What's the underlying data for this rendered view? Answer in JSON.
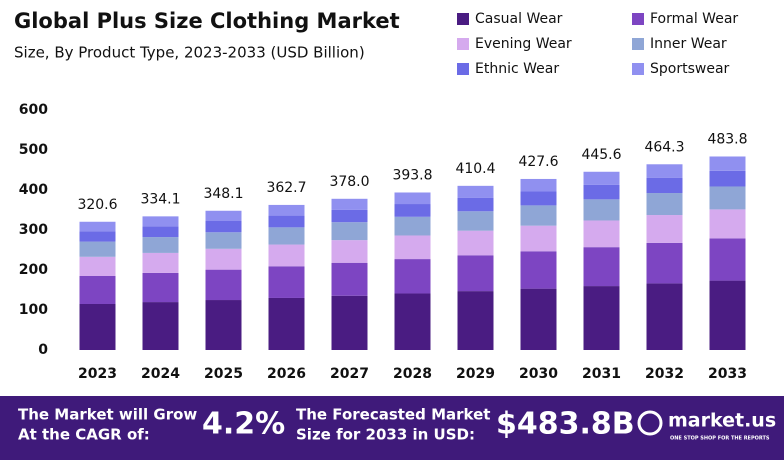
{
  "chart_data": {
    "type": "stacked-bar",
    "title": "Global Plus Size Clothing Market",
    "subtitle": "Size, By Product Type, 2023-2033 (USD Billion)",
    "categories": [
      "2023",
      "2024",
      "2025",
      "2026",
      "2027",
      "2028",
      "2029",
      "2030",
      "2031",
      "2032",
      "2033"
    ],
    "series": [
      {
        "name": "Casual Wear",
        "color": "#4a1c82",
        "values": [
          115,
          119.8,
          124.9,
          130.1,
          135.6,
          141.3,
          147.2,
          153.4,
          159.8,
          166.5,
          173.5
        ]
      },
      {
        "name": "Formal Wear",
        "color": "#7d45c2",
        "values": [
          70,
          72.9,
          76.0,
          79.2,
          82.5,
          86.0,
          89.6,
          93.4,
          97.3,
          101.4,
          105.6
        ]
      },
      {
        "name": "Evening Wear",
        "color": "#d5aaee",
        "values": [
          48,
          50.0,
          52.1,
          54.3,
          56.6,
          59.0,
          61.4,
          64.0,
          66.7,
          69.5,
          72.4
        ]
      },
      {
        "name": "Inner Wear",
        "color": "#8fa6d6",
        "values": [
          38,
          39.6,
          41.3,
          43.0,
          44.8,
          46.7,
          48.6,
          50.7,
          52.8,
          55.0,
          57.3
        ]
      },
      {
        "name": "Ethnic Wear",
        "color": "#6b6be6",
        "values": [
          26,
          27.1,
          28.2,
          29.4,
          30.7,
          31.9,
          33.3,
          34.7,
          36.1,
          37.7,
          39.2
        ]
      },
      {
        "name": "Sportswear",
        "color": "#9090f0",
        "values": [
          23.6,
          24.7,
          25.6,
          26.7,
          27.8,
          28.9,
          30.3,
          31.4,
          32.9,
          34.2,
          35.8
        ]
      }
    ],
    "totals": [
      320.6,
      334.1,
      348.1,
      362.7,
      378.0,
      393.8,
      410.4,
      427.6,
      445.6,
      464.3,
      483.8
    ],
    "total_labels": [
      "320.6",
      "334.1",
      "348.1",
      "362.7",
      "378.0",
      "393.8",
      "410.4",
      "427.6",
      "445.6",
      "464.3",
      "483.8"
    ],
    "ylim": [
      0,
      600
    ],
    "yticks": [
      0,
      100,
      200,
      300,
      400,
      500,
      600
    ],
    "grid": false,
    "legend": "top-right"
  },
  "footer": {
    "cagr_text": [
      "The Market will Grow",
      "At the CAGR of:"
    ],
    "cagr_value": "4.2%",
    "forecast_text": [
      "The Forecasted Market",
      "Size for 2033 in USD:"
    ],
    "forecast_value": "$483.8B",
    "logo": "market.us",
    "tagline": "ONE STOP SHOP FOR THE REPORTS"
  }
}
